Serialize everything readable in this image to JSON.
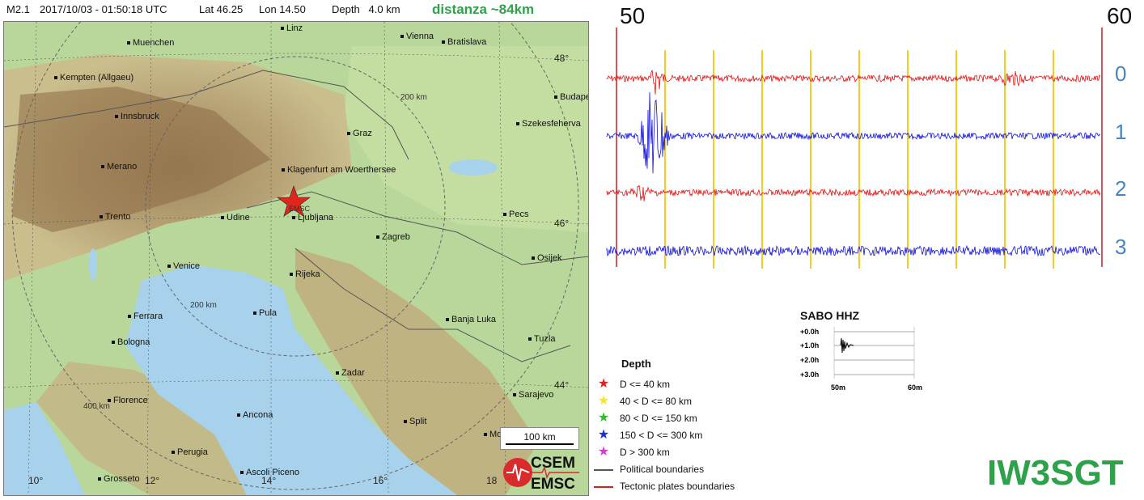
{
  "header": {
    "magnitude": "M2.1",
    "datetime": "2017/10/03 - 01:50:18 UTC",
    "lat": "Lat 46.25",
    "lon": "Lon 14.50",
    "depth": "Depth   4.0 km",
    "distance": "distanza ~84km"
  },
  "map": {
    "cities": [
      {
        "name": "Muenchen"
      },
      {
        "name": "Linz"
      },
      {
        "name": "Vienna"
      },
      {
        "name": "Bratislava"
      },
      {
        "name": "Kempten (Allgaeu)"
      },
      {
        "name": "Budape"
      },
      {
        "name": "Innsbruck"
      },
      {
        "name": "Szekesfeherva"
      },
      {
        "name": "Graz"
      },
      {
        "name": "Merano"
      },
      {
        "name": "Klagenfurt am Woerthersee"
      },
      {
        "name": "Trento"
      },
      {
        "name": "Udine"
      },
      {
        "name": "Ljubljana"
      },
      {
        "name": "Pecs"
      },
      {
        "name": "Zagreb"
      },
      {
        "name": "Venice"
      },
      {
        "name": "Osijek"
      },
      {
        "name": "Rijeka"
      },
      {
        "name": "Ferrara"
      },
      {
        "name": "Pula"
      },
      {
        "name": "Banja Luka"
      },
      {
        "name": "Bologna"
      },
      {
        "name": "Tuzla"
      },
      {
        "name": "Zadar"
      },
      {
        "name": "Sarajevo"
      },
      {
        "name": "Florence"
      },
      {
        "name": "Ancona"
      },
      {
        "name": "Split"
      },
      {
        "name": "Mos"
      },
      {
        "name": "Perugia"
      },
      {
        "name": "Grosseto"
      },
      {
        "name": "Ascoli Piceno"
      }
    ],
    "lat_labels": [
      "48°",
      "46°",
      "44°"
    ],
    "lon_labels": [
      "10°",
      "12°",
      "14°",
      "16°",
      "18"
    ],
    "distance_rings": [
      "200 km",
      "200 km",
      "400 km"
    ],
    "epicenter_label": "EMSC",
    "scale_label": "100 km",
    "logo_top": "CSEM",
    "logo_bottom": "EMSC"
  },
  "legend": {
    "title": "Depth",
    "rows": [
      {
        "label": "D <= 40 km",
        "color": "#e0251b"
      },
      {
        "label": "40 < D <= 80 km",
        "color": "#f5e625"
      },
      {
        "label": "80 < D <= 150 km",
        "color": "#2ebd2e"
      },
      {
        "label": "150 < D <= 300 km",
        "color": "#1b2fd6"
      },
      {
        "label": "D > 300 km",
        "color": "#d43bd4"
      }
    ],
    "lines": [
      {
        "label": "Political boundaries",
        "color": "#555555"
      },
      {
        "label": "Tectonic plates boundaries",
        "color": "#d62020"
      }
    ]
  },
  "seismogram": {
    "start_label": "50",
    "end_label": "60",
    "channels": [
      {
        "label": "0",
        "color": "#e01010"
      },
      {
        "label": "1",
        "color": "#1010d8"
      },
      {
        "label": "2",
        "color": "#e01010"
      },
      {
        "label": "3",
        "color": "#1010d8"
      }
    ],
    "marker_color": "#f0d020"
  },
  "thumbnail": {
    "title": "SABO HHZ",
    "rows": [
      "+0.0h",
      "+1.0h",
      "+2.0h",
      "+3.0h"
    ],
    "x_labels": [
      "50m",
      "60m"
    ]
  },
  "callsign": "IW3SGT"
}
